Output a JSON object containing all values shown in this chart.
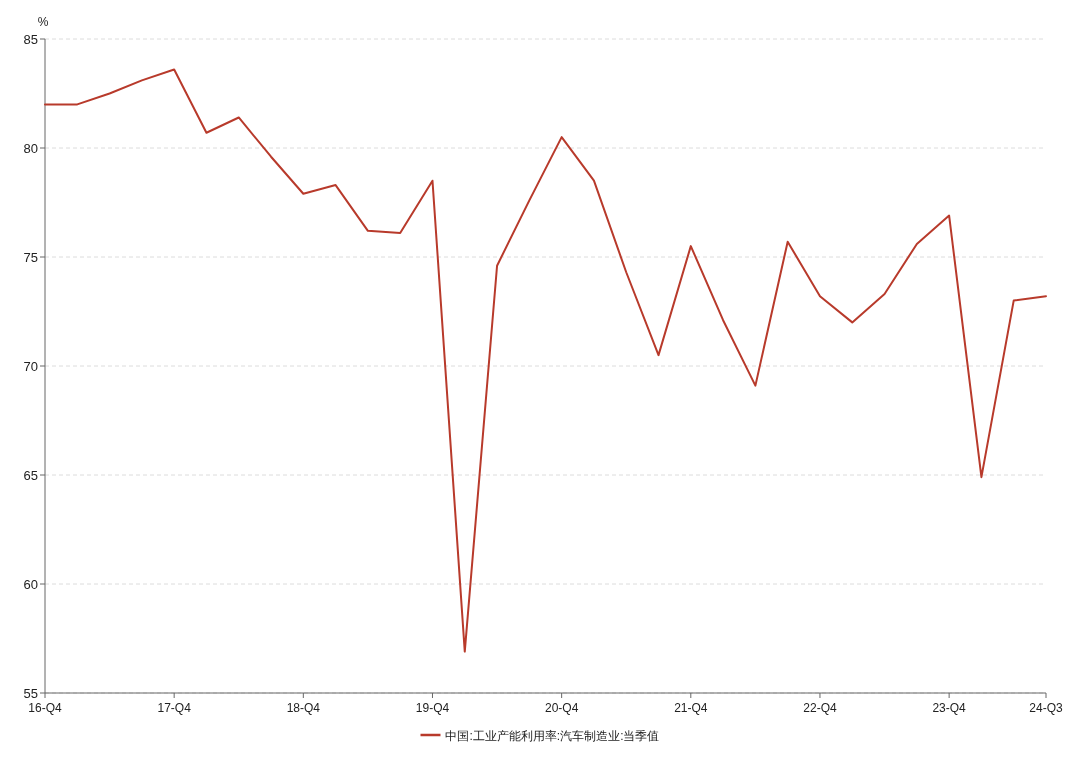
{
  "chart_data": {
    "type": "line",
    "ylabel": "%",
    "categories": [
      "16-Q4",
      null,
      null,
      null,
      "17-Q4",
      null,
      null,
      null,
      "18-Q4",
      null,
      null,
      null,
      "19-Q4",
      null,
      null,
      null,
      "20-Q4",
      null,
      null,
      null,
      "21-Q4",
      null,
      null,
      null,
      "22-Q4",
      null,
      null,
      null,
      "23-Q4",
      null,
      null,
      "24-Q3"
    ],
    "series": [
      {
        "name": "中国:工业产能利用率:汽车制造业:当季值",
        "color": "#b83a2b",
        "values": [
          82.0,
          82.0,
          82.5,
          83.1,
          83.6,
          80.7,
          81.4,
          79.6,
          77.9,
          78.3,
          76.2,
          76.1,
          78.5,
          56.9,
          74.6,
          77.6,
          80.5,
          78.5,
          74.3,
          70.5,
          75.5,
          72.1,
          69.1,
          75.7,
          73.2,
          72.0,
          73.3,
          75.6,
          76.9,
          64.9,
          73.0,
          73.2
        ]
      }
    ],
    "ylim": [
      55,
      85
    ],
    "yticks": [
      55,
      60,
      65,
      70,
      75,
      80,
      85
    ],
    "grid": "y",
    "legend": "bottom"
  }
}
